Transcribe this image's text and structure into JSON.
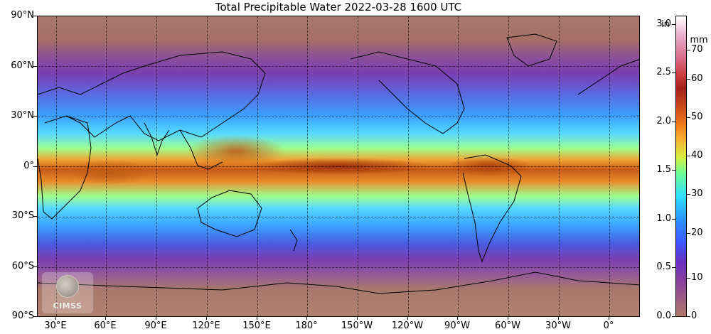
{
  "title": "Total Precipitable Water  2022-03-28 1600 UTC",
  "logo_text": "CIMSS",
  "lat_labels": [
    "90°N",
    "60°N",
    "30°N",
    "0°",
    "30°S",
    "60°S",
    "90°S"
  ],
  "lon_labels": [
    "30°E",
    "60°E",
    "90°E",
    "120°E",
    "150°E",
    "180°",
    "150°W",
    "120°W",
    "90°W",
    "60°W",
    "30°W",
    "0°"
  ],
  "colorbar": {
    "unit_in": "in",
    "unit_mm": "mm",
    "inch_ticks": [
      "3.0",
      "2.5",
      "2.0",
      "1.5",
      "1.0",
      "0.5",
      "0.0"
    ],
    "mm_ticks": [
      "70",
      "60",
      "50",
      "40",
      "30",
      "20",
      "10",
      "0"
    ],
    "range_in": [
      0.0,
      3.1
    ],
    "range_mm": [
      0,
      78
    ],
    "colors": [
      "#b07868",
      "#8a3fa0",
      "#3a5aff",
      "#30e0ff",
      "#70ff90",
      "#f8b030",
      "#c84818",
      "#a0201a",
      "#d86a88",
      "#ffffff"
    ]
  },
  "projection": "equirectangular",
  "central_longitude": "180°",
  "gridlines": "dashed"
}
